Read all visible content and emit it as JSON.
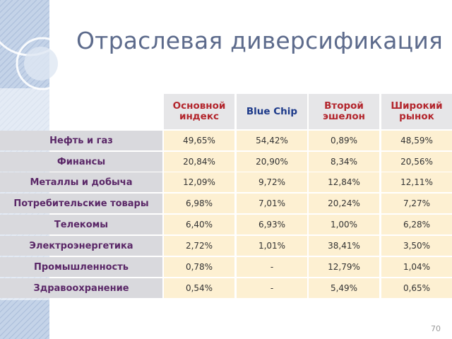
{
  "title": "Отраслевая диверсификация",
  "table": {
    "header": [
      "Основной индекс",
      "Blue Chip",
      "Второй эшелон",
      "Широкий рынок"
    ],
    "rows": [
      {
        "label": "Нефть и газ",
        "values": [
          "49,65%",
          "54,42%",
          "0,89%",
          "48,59%"
        ]
      },
      {
        "label": "Финансы",
        "values": [
          "20,84%",
          "20,90%",
          "8,34%",
          "20,56%"
        ]
      },
      {
        "label": "Металлы и добыча",
        "values": [
          "12,09%",
          "9,72%",
          "12,84%",
          "12,11%"
        ]
      },
      {
        "label": "Потребительские товары",
        "values": [
          "6,98%",
          "7,01%",
          "20,24%",
          "7,27%"
        ]
      },
      {
        "label": "Телекомы",
        "values": [
          "6,40%",
          "6,93%",
          "1,00%",
          "6,28%"
        ]
      },
      {
        "label": "Электроэнергетика",
        "values": [
          "2,72%",
          "1,01%",
          "38,41%",
          "3,50%"
        ]
      },
      {
        "label": "Промышленность",
        "values": [
          "0,78%",
          "-",
          "12,79%",
          "1,04%"
        ]
      },
      {
        "label": "Здравоохранение",
        "values": [
          "0,54%",
          "-",
          "5,49%",
          "0,65%"
        ]
      }
    ]
  },
  "page_number": "70"
}
